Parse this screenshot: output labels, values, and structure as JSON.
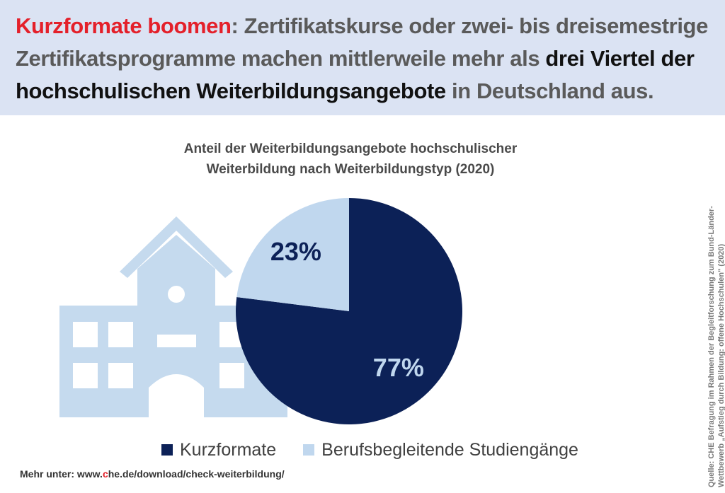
{
  "headline": {
    "part1": "Kurzformate boomen",
    "part2": ": Zertifikatskurse oder zwei- bis dreisemestrige Zertifikatsprogramme machen mittlerweile mehr als ",
    "part3": "drei Viertel der hochschulischen Weiterbildungsangebote",
    "part4": " in Deutschland aus."
  },
  "footer": {
    "prefix": "Mehr unter: www.",
    "brand_c": "c",
    "suffix": "he.de/download/check-weiterbildung/"
  },
  "source": {
    "line1": "Quelle: CHE Befragung im Rahmen der Begleitforschung zum Bund-Länder-",
    "line2": "Wettbewerb „Aufstieg durch Bildung: offene Hochschulen\" (2020)"
  },
  "colors": {
    "accent_red": "#e4202a",
    "kurzformate": "#0c2157",
    "berufsbegleitend": "#c0d7ee",
    "building": "#c5daee"
  },
  "icons": {
    "background": "school-building-icon"
  },
  "chart_data": {
    "type": "pie",
    "title_line1": "Anteil der  Weiterbildungsangebote hochschulischer",
    "title_line2": "Weiterbildung nach Weiterbildungstyp (2020)",
    "slices": [
      {
        "name": "Kurzformate",
        "value": 77,
        "label": "77%",
        "color": "#0c2157",
        "label_color": "#c0d7ee"
      },
      {
        "name": "Berufsbegleitende Studiengänge",
        "value": 23,
        "label": "23%",
        "color": "#c0d7ee",
        "label_color": "#0c2157"
      }
    ],
    "legend_position": "bottom"
  }
}
